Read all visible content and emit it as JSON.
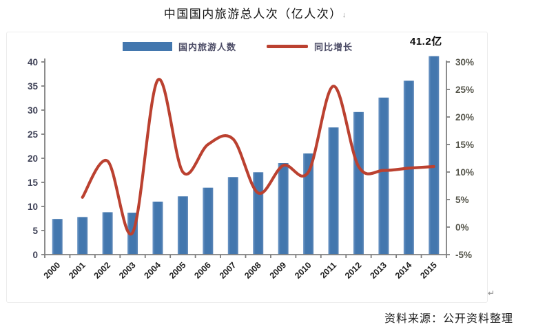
{
  "page": {
    "title": "中国国内旅游总人次（亿人次）",
    "title_mark": "↓",
    "return_mark": "↵",
    "source": "资料来源：公开资料整理"
  },
  "legend": {
    "bars_label": "国内旅游人数",
    "line_label": "同比增长"
  },
  "annotation": {
    "peak_label": "41.2亿"
  },
  "colors": {
    "bar": "#4377ae",
    "bar_edge_light": "#6e97c6",
    "line": "#bb4130",
    "axis": "#7f7f7f",
    "left_tick_text": "#3f4257",
    "right_tick_text": "#54544a",
    "x_tick_text": "#1f1f1f"
  },
  "chart_data": {
    "type": "bar",
    "title": "中国国内旅游总人次（亿人次）",
    "categories": [
      "2000",
      "2001",
      "2002",
      "2003",
      "2004",
      "2005",
      "2006",
      "2007",
      "2008",
      "2009",
      "2010",
      "2011",
      "2012",
      "2013",
      "2014",
      "2015"
    ],
    "series": [
      {
        "name": "国内旅游人数",
        "type": "bar",
        "axis": "left",
        "unit": "亿人次",
        "values": [
          7.4,
          7.8,
          8.8,
          8.7,
          11.0,
          12.1,
          13.9,
          16.1,
          17.1,
          19.0,
          21.0,
          26.4,
          29.6,
          32.6,
          36.1,
          41.2
        ]
      },
      {
        "name": "同比增长",
        "type": "line",
        "axis": "right",
        "unit": "%",
        "start_category_index": 1,
        "values": [
          5.4,
          12.0,
          -1.0,
          26.7,
          10.0,
          15.0,
          16.0,
          6.2,
          11.2,
          10.0,
          25.6,
          11.0,
          10.3,
          10.7,
          11.0
        ]
      }
    ],
    "left_axis": {
      "min": 0,
      "max": 40,
      "step": 5,
      "ticks": [
        "0",
        "5",
        "10",
        "15",
        "20",
        "25",
        "30",
        "35",
        "40"
      ]
    },
    "right_axis": {
      "min": -5,
      "max": 30,
      "step": 5,
      "ticks": [
        "-5%",
        "0%",
        "5%",
        "10%",
        "15%",
        "20%",
        "25%",
        "30%"
      ]
    },
    "annotation": "41.2亿",
    "grid": false,
    "legend_position": "top-center",
    "smooth_line": true
  }
}
